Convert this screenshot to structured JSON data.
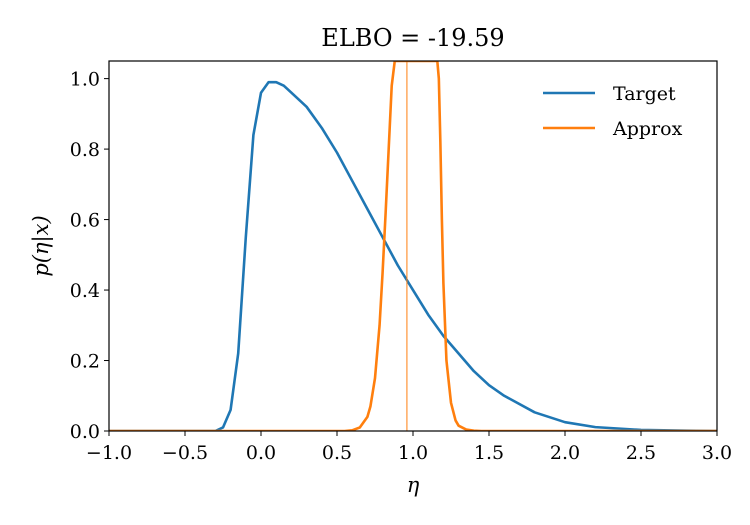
{
  "chart_data": {
    "type": "line",
    "title": "ELBO = -19.59",
    "xlabel": "η",
    "ylabel": "p(η|x)",
    "xlim": [
      -1.0,
      3.0
    ],
    "ylim": [
      0.0,
      1.05
    ],
    "xticks": [
      "−1.0",
      "−0.5",
      "0.0",
      "0.5",
      "1.0",
      "1.5",
      "2.0",
      "2.5",
      "3.0"
    ],
    "xtick_values": [
      -1.0,
      -0.5,
      0.0,
      0.5,
      1.0,
      1.5,
      2.0,
      2.5,
      3.0
    ],
    "yticks": [
      "0.0",
      "0.2",
      "0.4",
      "0.6",
      "0.8",
      "1.0"
    ],
    "ytick_values": [
      0.0,
      0.2,
      0.4,
      0.6,
      0.8,
      1.0
    ],
    "grid": false,
    "legend_position": "top-right",
    "vline": {
      "x": 0.96,
      "color": "#ff7f0e"
    },
    "series": [
      {
        "name": "Target",
        "color": "#1f77b4",
        "x": [
          -1.0,
          -0.6,
          -0.3,
          -0.25,
          -0.2,
          -0.15,
          -0.1,
          -0.05,
          0.0,
          0.05,
          0.1,
          0.15,
          0.2,
          0.3,
          0.4,
          0.5,
          0.6,
          0.7,
          0.8,
          0.9,
          1.0,
          1.1,
          1.2,
          1.3,
          1.4,
          1.5,
          1.6,
          1.8,
          2.0,
          2.2,
          2.5,
          2.8,
          3.0
        ],
        "y": [
          0.0,
          0.0,
          0.0,
          0.01,
          0.06,
          0.22,
          0.55,
          0.84,
          0.96,
          0.99,
          0.99,
          0.98,
          0.96,
          0.92,
          0.86,
          0.79,
          0.71,
          0.63,
          0.55,
          0.47,
          0.4,
          0.33,
          0.27,
          0.22,
          0.17,
          0.13,
          0.1,
          0.053,
          0.025,
          0.011,
          0.003,
          0.001,
          0.0
        ]
      },
      {
        "name": "Approx",
        "color": "#ff7f0e",
        "x": [
          -1.0,
          0.55,
          0.6,
          0.65,
          0.7,
          0.72,
          0.75,
          0.78,
          0.8,
          0.82,
          0.84,
          0.86,
          0.88,
          0.9,
          1.0,
          1.1,
          1.16,
          1.17,
          1.18,
          1.19,
          1.2,
          1.22,
          1.25,
          1.28,
          1.3,
          1.35,
          1.4,
          1.45,
          3.0
        ],
        "y": [
          0.0,
          0.0,
          0.002,
          0.01,
          0.04,
          0.07,
          0.15,
          0.3,
          0.45,
          0.62,
          0.8,
          0.98,
          1.05,
          1.05,
          1.05,
          1.05,
          1.05,
          1.0,
          0.82,
          0.6,
          0.42,
          0.2,
          0.08,
          0.03,
          0.015,
          0.004,
          0.001,
          0.0,
          0.0
        ]
      }
    ]
  }
}
